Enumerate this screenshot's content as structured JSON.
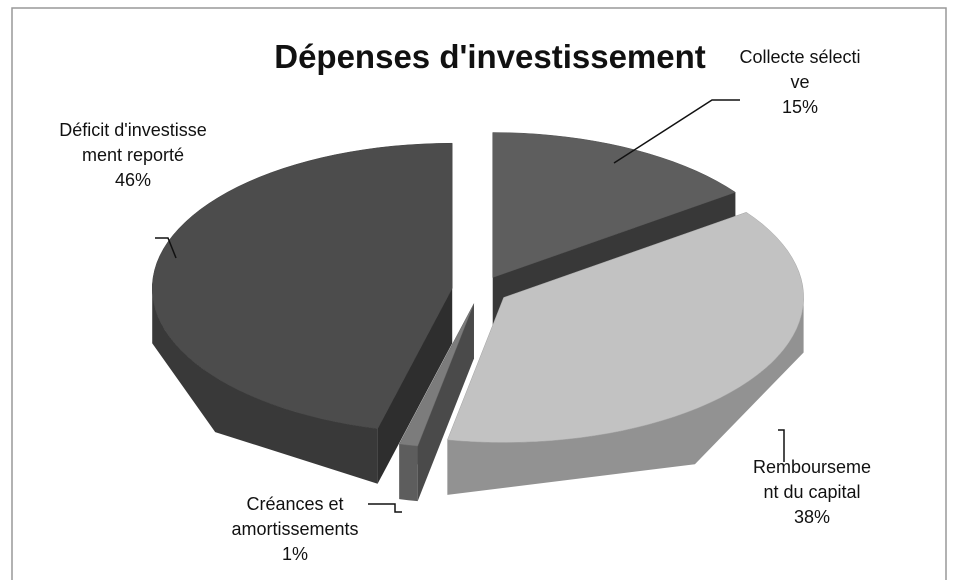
{
  "chart_data": {
    "type": "pie3d",
    "title": "Dépenses d'investissement",
    "categories": [
      "Collecte sélective",
      "Remboursement du capital",
      "Créances et amortissements",
      "Déficit d'investissement reporté"
    ],
    "values": [
      15,
      38,
      1,
      46
    ],
    "value_labels": [
      "15%",
      "38%",
      "1%",
      "46%"
    ],
    "colors": [
      "#5e5e5e",
      "#c2c2c2",
      "#7c7c7c",
      "#4c4c4c"
    ]
  }
}
